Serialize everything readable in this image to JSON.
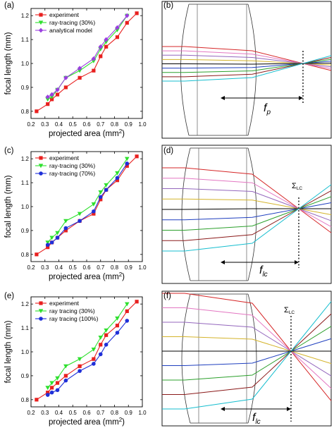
{
  "panels": {
    "a": {
      "label": "(a)"
    },
    "b": {
      "label": "(b)",
      "focal_label": "f",
      "focal_sub": "p"
    },
    "c": {
      "label": "(c)"
    },
    "d": {
      "label": "(d)",
      "focal_label": "f",
      "focal_sub": "lc",
      "sigma_label": "Σ",
      "sigma_sub": "LC"
    },
    "e": {
      "label": "(e)"
    },
    "f": {
      "label": "(f)",
      "focal_label": "f",
      "focal_sub": "lc",
      "sigma_label": "Σ",
      "sigma_sub": "LC"
    }
  },
  "ray_colors": [
    "#d62728",
    "#e377c2",
    "#9467bd",
    "#d4b32a",
    "#000000",
    "#1f3fbf",
    "#2ca02c",
    "#8b1a1a",
    "#17becf"
  ],
  "chart_data": [
    {
      "type": "line",
      "panel": "a",
      "xlabel": "projected area (mm",
      "xlabel_sup": "2",
      "xlabel_close": ")",
      "ylabel": "focal length (mm)",
      "xlim": [
        0.2,
        1.0
      ],
      "ylim": [
        0.77,
        1.23
      ],
      "xticks": [
        "0.2",
        "0.3",
        "0.4",
        "0.5",
        "0.6",
        "0.7",
        "0.8",
        "0.9",
        "1.0"
      ],
      "yticks": [
        "0.8",
        "0.9",
        "1.0",
        "1.1",
        "1.2"
      ],
      "legend_position": "top-left",
      "series": [
        {
          "name": "experiment",
          "color": "#e8201f",
          "marker": "square",
          "x": [
            0.24,
            0.32,
            0.35,
            0.39,
            0.45,
            0.55,
            0.65,
            0.7,
            0.74,
            0.82,
            0.89,
            0.96
          ],
          "y": [
            0.8,
            0.83,
            0.85,
            0.87,
            0.9,
            0.94,
            0.97,
            1.03,
            1.07,
            1.11,
            1.17,
            1.21
          ]
        },
        {
          "name": "ray-tracing (30%)",
          "color": "#2ee02e",
          "marker": "triangle-down",
          "x": [
            0.32,
            0.35,
            0.39,
            0.45,
            0.55,
            0.65,
            0.7,
            0.74,
            0.82,
            0.89
          ],
          "y": [
            0.85,
            0.86,
            0.89,
            0.94,
            0.97,
            1.01,
            1.06,
            1.09,
            1.14,
            1.2
          ]
        },
        {
          "name": "analytical model",
          "color": "#9b3fe0",
          "marker": "diamond",
          "x": [
            0.32,
            0.35,
            0.39,
            0.45,
            0.55,
            0.65,
            0.7,
            0.74,
            0.82,
            0.89
          ],
          "y": [
            0.86,
            0.87,
            0.89,
            0.94,
            0.98,
            1.02,
            1.07,
            1.1,
            1.15,
            1.2
          ]
        }
      ]
    },
    {
      "type": "line",
      "panel": "c",
      "xlabel": "projected area (mm",
      "xlabel_sup": "2",
      "xlabel_close": ")",
      "ylabel": "focal length (mm)",
      "xlim": [
        0.2,
        1.0
      ],
      "ylim": [
        0.77,
        1.23
      ],
      "xticks": [
        "0.2",
        "0.3",
        "0.4",
        "0.5",
        "0.6",
        "0.7",
        "0.8",
        "0.9",
        "1.0"
      ],
      "yticks": [
        "0.8",
        "0.9",
        "1.0",
        "1.1",
        "1.2"
      ],
      "legend_position": "top-left",
      "series": [
        {
          "name": "experiment",
          "color": "#e8201f",
          "marker": "square",
          "x": [
            0.24,
            0.32,
            0.35,
            0.39,
            0.45,
            0.55,
            0.65,
            0.7,
            0.74,
            0.82,
            0.89,
            0.96
          ],
          "y": [
            0.8,
            0.83,
            0.85,
            0.87,
            0.9,
            0.94,
            0.97,
            1.03,
            1.07,
            1.11,
            1.17,
            1.21
          ]
        },
        {
          "name": "ray-tracing (30%)",
          "color": "#2ee02e",
          "marker": "triangle-down",
          "x": [
            0.32,
            0.35,
            0.39,
            0.45,
            0.55,
            0.65,
            0.7,
            0.74,
            0.82,
            0.89
          ],
          "y": [
            0.85,
            0.87,
            0.89,
            0.94,
            0.97,
            1.01,
            1.06,
            1.09,
            1.14,
            1.2
          ]
        },
        {
          "name": "ray-tracing (70%)",
          "color": "#1f2fd8",
          "marker": "circle",
          "x": [
            0.32,
            0.35,
            0.39,
            0.45,
            0.55,
            0.65,
            0.7,
            0.74,
            0.82,
            0.89
          ],
          "y": [
            0.84,
            0.85,
            0.87,
            0.91,
            0.94,
            0.98,
            1.04,
            1.07,
            1.12,
            1.18
          ]
        }
      ]
    },
    {
      "type": "line",
      "panel": "e",
      "xlabel": "projected area (mm",
      "xlabel_sup": "2",
      "xlabel_close": ")",
      "ylabel": "focal length (mm)",
      "xlim": [
        0.2,
        1.0
      ],
      "ylim": [
        0.77,
        1.23
      ],
      "xticks": [
        "0.2",
        "0.3",
        "0.4",
        "0.5",
        "0.6",
        "0.7",
        "0.8",
        "0.9",
        "1.0"
      ],
      "yticks": [
        "0.8",
        "0.9",
        "1.0",
        "1.1",
        "1.2"
      ],
      "legend_position": "top-left",
      "series": [
        {
          "name": "experiment",
          "color": "#e8201f",
          "marker": "square",
          "x": [
            0.24,
            0.32,
            0.35,
            0.39,
            0.45,
            0.55,
            0.65,
            0.7,
            0.74,
            0.82,
            0.89,
            0.96
          ],
          "y": [
            0.8,
            0.83,
            0.85,
            0.87,
            0.9,
            0.94,
            0.97,
            1.03,
            1.07,
            1.11,
            1.17,
            1.21
          ]
        },
        {
          "name": "ray tracing (30%)",
          "color": "#2ee02e",
          "marker": "triangle-down",
          "x": [
            0.32,
            0.35,
            0.39,
            0.45,
            0.55,
            0.65,
            0.7,
            0.74,
            0.82,
            0.89
          ],
          "y": [
            0.85,
            0.87,
            0.89,
            0.94,
            0.97,
            1.01,
            1.06,
            1.09,
            1.14,
            1.2
          ]
        },
        {
          "name": "ray tracing (100%)",
          "color": "#1f2fd8",
          "marker": "circle",
          "x": [
            0.32,
            0.35,
            0.39,
            0.45,
            0.55,
            0.65,
            0.7,
            0.74,
            0.82,
            0.89
          ],
          "y": [
            0.82,
            0.83,
            0.84,
            0.88,
            0.92,
            0.95,
            0.99,
            1.03,
            1.08,
            1.13
          ]
        }
      ]
    }
  ]
}
